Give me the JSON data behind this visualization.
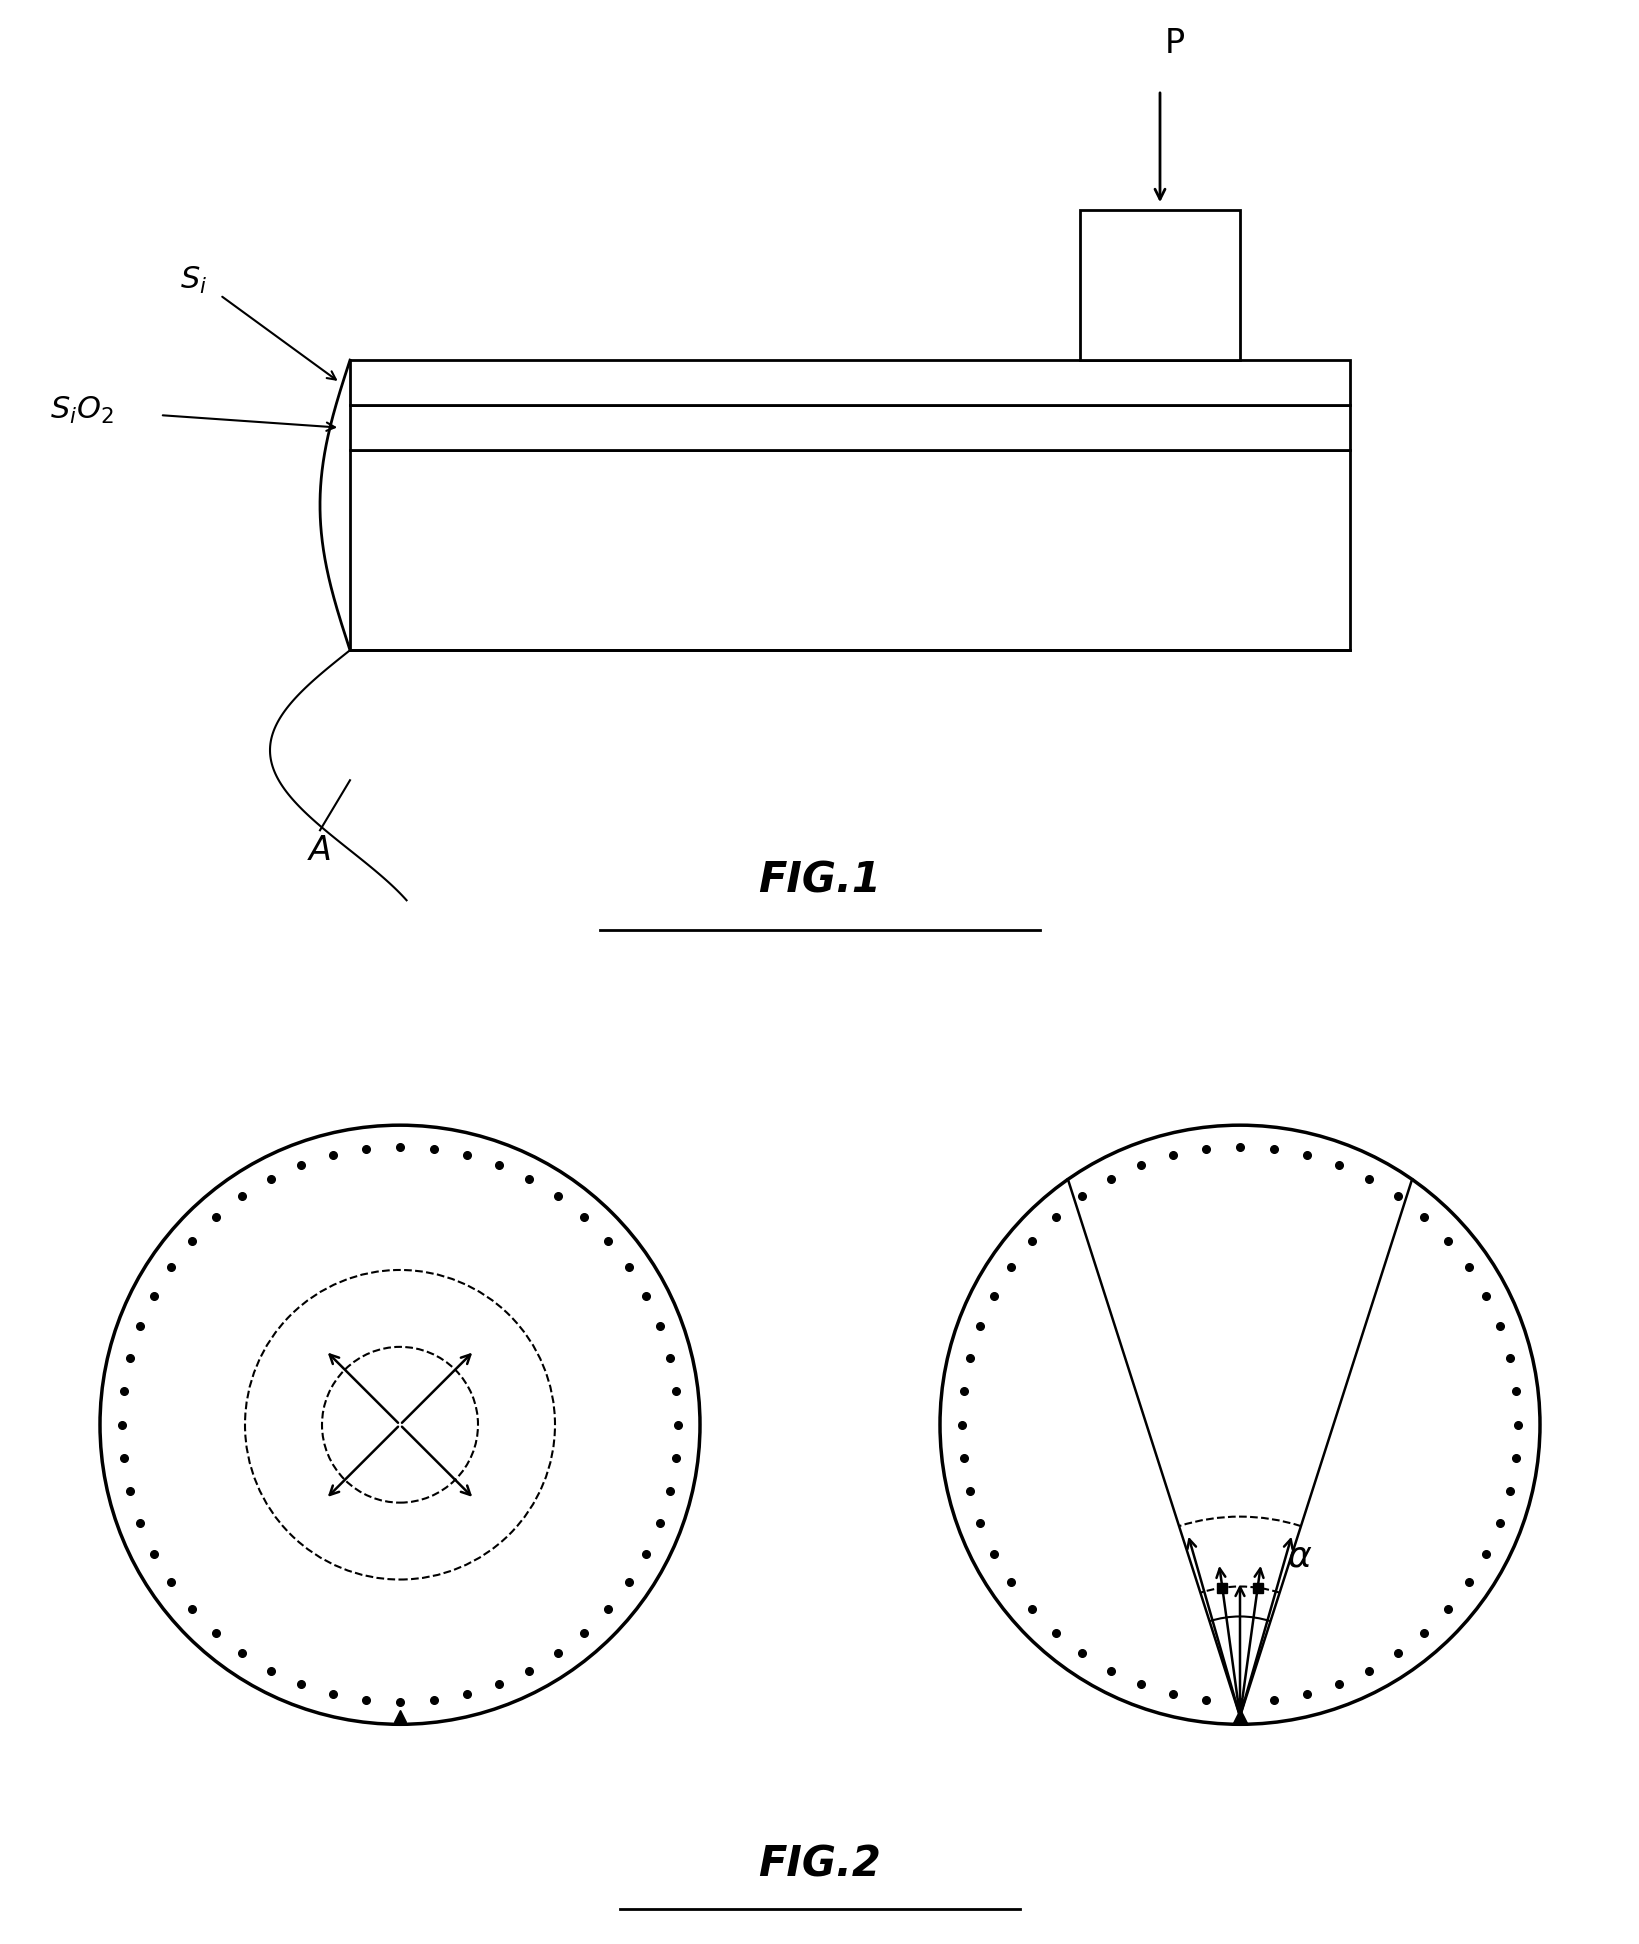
{
  "bg_color": "#ffffff",
  "fig_width": 16.4,
  "fig_height": 19.44,
  "fig1_label": "FIG.1",
  "fig2_label": "FIG.2",
  "label_si": "S$_i$",
  "label_sio2": "S$_i$O$_2$",
  "label_A": "A",
  "label_P": "P",
  "label_alpha": "$\\alpha$"
}
